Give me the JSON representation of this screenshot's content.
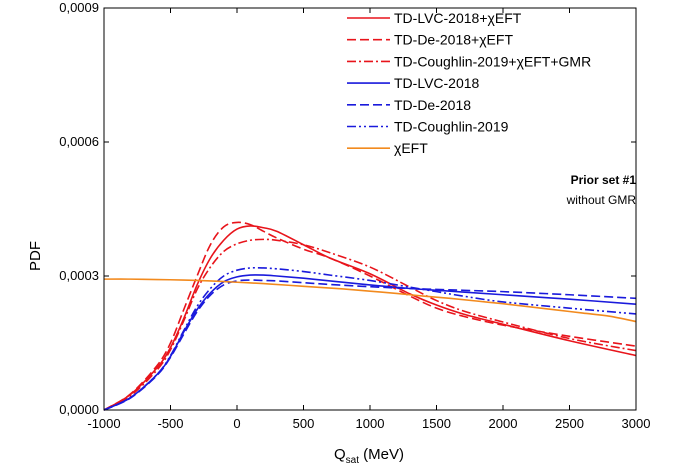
{
  "chart_data": {
    "type": "line",
    "xlabel": "Q",
    "xlabel_sub": "sat",
    "xlabel_unit": " (MeV)",
    "ylabel": "PDF",
    "xlim": [
      -1000,
      3000
    ],
    "ylim": [
      0,
      0.0009
    ],
    "xticks": [
      -1000,
      -500,
      0,
      500,
      1000,
      1500,
      2000,
      2500,
      3000
    ],
    "xtick_labels": [
      "-1000",
      "-500",
      "0",
      "500",
      "1000",
      "1500",
      "2000",
      "2500",
      "3000"
    ],
    "yticks": [
      0,
      0.0003,
      0.0006,
      0.0009
    ],
    "ytick_labels": [
      "0,0000",
      "0,0003",
      "0,0006",
      "0,0009"
    ],
    "grid": false,
    "legend_position": "top-right",
    "annotation": {
      "title": "Prior set #1",
      "subtitle": "without  GMR"
    },
    "series": [
      {
        "name": "TD-LVC-2018+χEFT",
        "color": "#e8141b",
        "dash": "solid",
        "x": [
          -1000,
          -800,
          -600,
          -500,
          -400,
          -300,
          -200,
          -100,
          0,
          100,
          200,
          300,
          500,
          700,
          1000,
          1300,
          1500,
          1700,
          2000,
          2500,
          3000
        ],
        "y": [
          0,
          3.5e-05,
          9.5e-05,
          0.00014,
          0.000205,
          0.00028,
          0.00034,
          0.00038,
          0.000405,
          0.000412,
          0.000408,
          0.0004,
          0.00037,
          0.00034,
          0.000305,
          0.00026,
          0.000235,
          0.000215,
          0.000192,
          0.000155,
          0.000122
        ]
      },
      {
        "name": "TD-De-2018+χEFT",
        "color": "#e8141b",
        "dash": "dashed",
        "x": [
          -1000,
          -800,
          -600,
          -500,
          -400,
          -300,
          -200,
          -100,
          0,
          100,
          200,
          300,
          500,
          700,
          1000,
          1300,
          1500,
          1700,
          2000,
          2500,
          3000
        ],
        "y": [
          0,
          3.6e-05,
          0.0001,
          0.00015,
          0.000225,
          0.0003,
          0.00037,
          0.00041,
          0.00042,
          0.000415,
          0.0004,
          0.000385,
          0.00036,
          0.00034,
          0.0003,
          0.000255,
          0.000228,
          0.00021,
          0.00019,
          0.000165,
          0.000143
        ]
      },
      {
        "name": "TD-Coughlin-2019+χEFT+GMR",
        "color": "#e8141b",
        "dash": "dashdot",
        "x": [
          -1000,
          -800,
          -600,
          -500,
          -400,
          -300,
          -200,
          -100,
          0,
          100,
          200,
          300,
          500,
          700,
          1000,
          1300,
          1500,
          1700,
          2000,
          2500,
          3000
        ],
        "y": [
          0,
          3.2e-05,
          9e-05,
          0.000135,
          0.0002,
          0.00027,
          0.00032,
          0.000355,
          0.000372,
          0.00038,
          0.000382,
          0.00038,
          0.00037,
          0.000352,
          0.00032,
          0.000275,
          0.000245,
          0.000222,
          0.000197,
          0.00016,
          0.000133
        ]
      },
      {
        "name": "TD-LVC-2018",
        "color": "#1a1adc",
        "dash": "solid",
        "x": [
          -1000,
          -800,
          -600,
          -500,
          -400,
          -300,
          -200,
          -100,
          0,
          100,
          200,
          300,
          500,
          700,
          1000,
          1300,
          1500,
          1700,
          2000,
          2500,
          3000
        ],
        "y": [
          0,
          2.8e-05,
          8e-05,
          0.00012,
          0.000175,
          0.000225,
          0.000262,
          0.000287,
          0.000298,
          0.000302,
          0.000302,
          0.0003,
          0.000295,
          0.000289,
          0.00028,
          0.000272,
          0.000268,
          0.000264,
          0.000258,
          0.000248,
          0.000237
        ]
      },
      {
        "name": "TD-De-2018",
        "color": "#1a1adc",
        "dash": "dashed",
        "x": [
          -1000,
          -800,
          -600,
          -500,
          -400,
          -300,
          -200,
          -100,
          0,
          100,
          200,
          300,
          500,
          700,
          1000,
          1300,
          1500,
          1700,
          2000,
          2500,
          3000
        ],
        "y": [
          0,
          2.7e-05,
          7.8e-05,
          0.000118,
          0.00017,
          0.00022,
          0.000257,
          0.00028,
          0.000289,
          0.000291,
          0.00029,
          0.000289,
          0.000285,
          0.000281,
          0.000276,
          0.000272,
          0.00027,
          0.000268,
          0.000265,
          0.000258,
          0.00025
        ]
      },
      {
        "name": "TD-Coughlin-2019",
        "color": "#1a1adc",
        "dash": "dashdotdot",
        "x": [
          -1000,
          -800,
          -600,
          -500,
          -400,
          -300,
          -200,
          -100,
          0,
          100,
          200,
          300,
          500,
          700,
          1000,
          1300,
          1500,
          1700,
          2000,
          2500,
          3000
        ],
        "y": [
          0,
          2.8e-05,
          8e-05,
          0.000122,
          0.000178,
          0.000232,
          0.000272,
          0.0003,
          0.000313,
          0.000318,
          0.000318,
          0.000316,
          0.00031,
          0.000302,
          0.00029,
          0.000275,
          0.000265,
          0.000255,
          0.000242,
          0.000228,
          0.000215
        ]
      },
      {
        "name": "χEFT",
        "color": "#f28a1e",
        "dash": "solid",
        "x": [
          -1000,
          -800,
          -600,
          -400,
          -200,
          0,
          200,
          400,
          600,
          800,
          1000,
          1200,
          1400,
          1600,
          1800,
          2000,
          2200,
          2400,
          2600,
          2800,
          3000
        ],
        "y": [
          0.000293,
          0.000293,
          0.000292,
          0.000291,
          0.000289,
          0.000286,
          0.000283,
          0.000279,
          0.000275,
          0.000271,
          0.000266,
          0.000261,
          0.000255,
          0.00025,
          0.000244,
          0.000238,
          0.000231,
          0.000224,
          0.000217,
          0.00021,
          0.000198
        ]
      }
    ]
  }
}
